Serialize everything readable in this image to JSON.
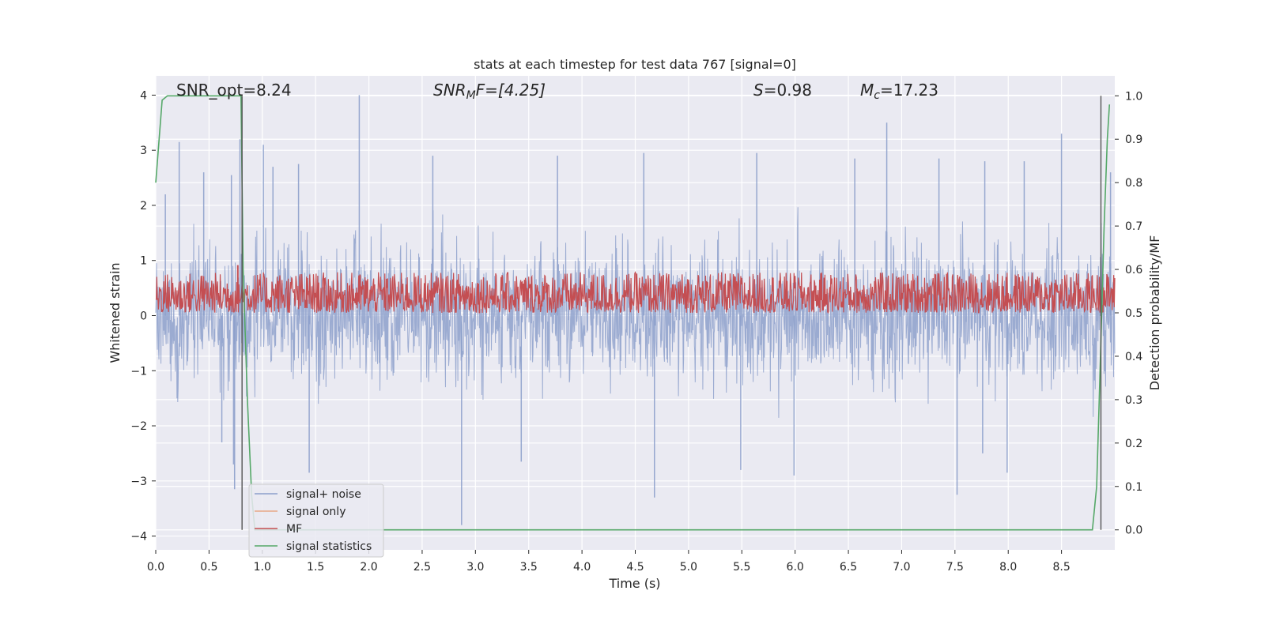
{
  "chart_data": {
    "type": "line",
    "title": "stats at each timestep for test data 767 [signal=0]",
    "xlabel": "Time (s)",
    "ylabel": "Whitened strain",
    "ylabel_right": "Detection probability/MF",
    "xlim": [
      0.0,
      9.0
    ],
    "ylim": [
      -4.25,
      4.35
    ],
    "ylim_right": [
      -0.046,
      1.046
    ],
    "x_ticks": [
      "0.0",
      "0.5",
      "1.0",
      "1.5",
      "2.0",
      "2.5",
      "3.0",
      "3.5",
      "4.0",
      "4.5",
      "5.0",
      "5.5",
      "6.0",
      "6.5",
      "7.0",
      "7.5",
      "8.0",
      "8.5"
    ],
    "x_tick_values": [
      0.0,
      0.5,
      1.0,
      1.5,
      2.0,
      2.5,
      3.0,
      3.5,
      4.0,
      4.5,
      5.0,
      5.5,
      6.0,
      6.5,
      7.0,
      7.5,
      8.0,
      8.5
    ],
    "y_ticks": [
      "−4",
      "−3",
      "−2",
      "−1",
      "0",
      "1",
      "2",
      "3",
      "4"
    ],
    "y_tick_values": [
      -4,
      -3,
      -2,
      -1,
      0,
      1,
      2,
      3,
      4
    ],
    "y_ticks_right": [
      "0.0",
      "0.1",
      "0.2",
      "0.3",
      "0.4",
      "0.5",
      "0.6",
      "0.7",
      "0.8",
      "0.9",
      "1.0"
    ],
    "y_tick_values_right": [
      0.0,
      0.1,
      0.2,
      0.3,
      0.4,
      0.5,
      0.6,
      0.7,
      0.8,
      0.9,
      1.0
    ],
    "grid": true,
    "legend_position": "lower-left",
    "annotations": {
      "snr_opt": "SNR_opt=8.24",
      "snr_mf_sym": "SNR",
      "snr_mf_sub": "M",
      "snr_mf_rest": "F=[4.25]",
      "s_sym": "S",
      "s_rest": "=0.98",
      "mc_sym": "M",
      "mc_sub": "c",
      "mc_rest": "=17.23"
    },
    "series": [
      {
        "name": "signal+ noise",
        "color": "#8da0cb",
        "axis": "left",
        "kind": "noise",
        "noise_range": [
          -2.2,
          2.4
        ],
        "spike_peaks": [
          {
            "x": 0.09,
            "y": 2.2
          },
          {
            "x": 0.22,
            "y": 3.15
          },
          {
            "x": 0.45,
            "y": 2.6
          },
          {
            "x": 0.71,
            "y": 2.55
          },
          {
            "x": 0.79,
            "y": 3.2
          },
          {
            "x": 1.01,
            "y": 3.1
          },
          {
            "x": 1.1,
            "y": 2.7
          },
          {
            "x": 1.34,
            "y": 2.75
          },
          {
            "x": 1.91,
            "y": 4.0
          },
          {
            "x": 2.6,
            "y": 2.9
          },
          {
            "x": 3.77,
            "y": 2.9
          },
          {
            "x": 4.58,
            "y": 2.95
          },
          {
            "x": 5.64,
            "y": 2.95
          },
          {
            "x": 6.56,
            "y": 2.85
          },
          {
            "x": 6.86,
            "y": 3.5
          },
          {
            "x": 7.35,
            "y": 2.85
          },
          {
            "x": 7.78,
            "y": 2.8
          },
          {
            "x": 8.15,
            "y": 2.8
          },
          {
            "x": 8.5,
            "y": 3.3
          },
          {
            "x": 8.96,
            "y": 2.6
          },
          {
            "x": 0.73,
            "y": -2.7
          },
          {
            "x": 0.74,
            "y": -3.15
          },
          {
            "x": 1.44,
            "y": -2.85
          },
          {
            "x": 2.87,
            "y": -3.8
          },
          {
            "x": 3.43,
            "y": -2.65
          },
          {
            "x": 4.68,
            "y": -3.3
          },
          {
            "x": 5.49,
            "y": -2.8
          },
          {
            "x": 5.99,
            "y": -2.9
          },
          {
            "x": 7.52,
            "y": -3.25
          },
          {
            "x": 7.76,
            "y": -2.5
          },
          {
            "x": 7.99,
            "y": -2.85
          },
          {
            "x": 0.62,
            "y": -2.3
          }
        ]
      },
      {
        "name": "signal only",
        "color": "#e8a886",
        "axis": "left",
        "kind": "empty"
      },
      {
        "name": "MF",
        "color": "#c44e52",
        "axis": "right",
        "kind": "mf",
        "mf_base": 0.52,
        "mf_range": [
          0.5,
          0.61
        ],
        "mf_peak": {
          "x": 0.77,
          "y": 0.61
        }
      },
      {
        "name": "signal statistics",
        "color": "#55a868",
        "axis": "right",
        "kind": "line",
        "x": [
          0.0,
          0.06,
          0.11,
          0.2,
          0.7,
          0.8,
          0.82,
          0.86,
          0.9,
          0.93,
          1.0,
          3.0,
          6.0,
          8.79,
          8.83,
          8.86,
          8.9,
          8.93,
          8.95
        ],
        "y": [
          0.8,
          0.99,
          1.0,
          1.0,
          1.0,
          1.0,
          0.6,
          0.3,
          0.08,
          0.0,
          0.0,
          0.0,
          0.0,
          0.0,
          0.1,
          0.35,
          0.7,
          0.9,
          0.98
        ]
      }
    ],
    "vertical_lines": [
      {
        "x": 0.81,
        "color": "#555555"
      },
      {
        "x": 8.87,
        "color": "#555555"
      }
    ]
  }
}
